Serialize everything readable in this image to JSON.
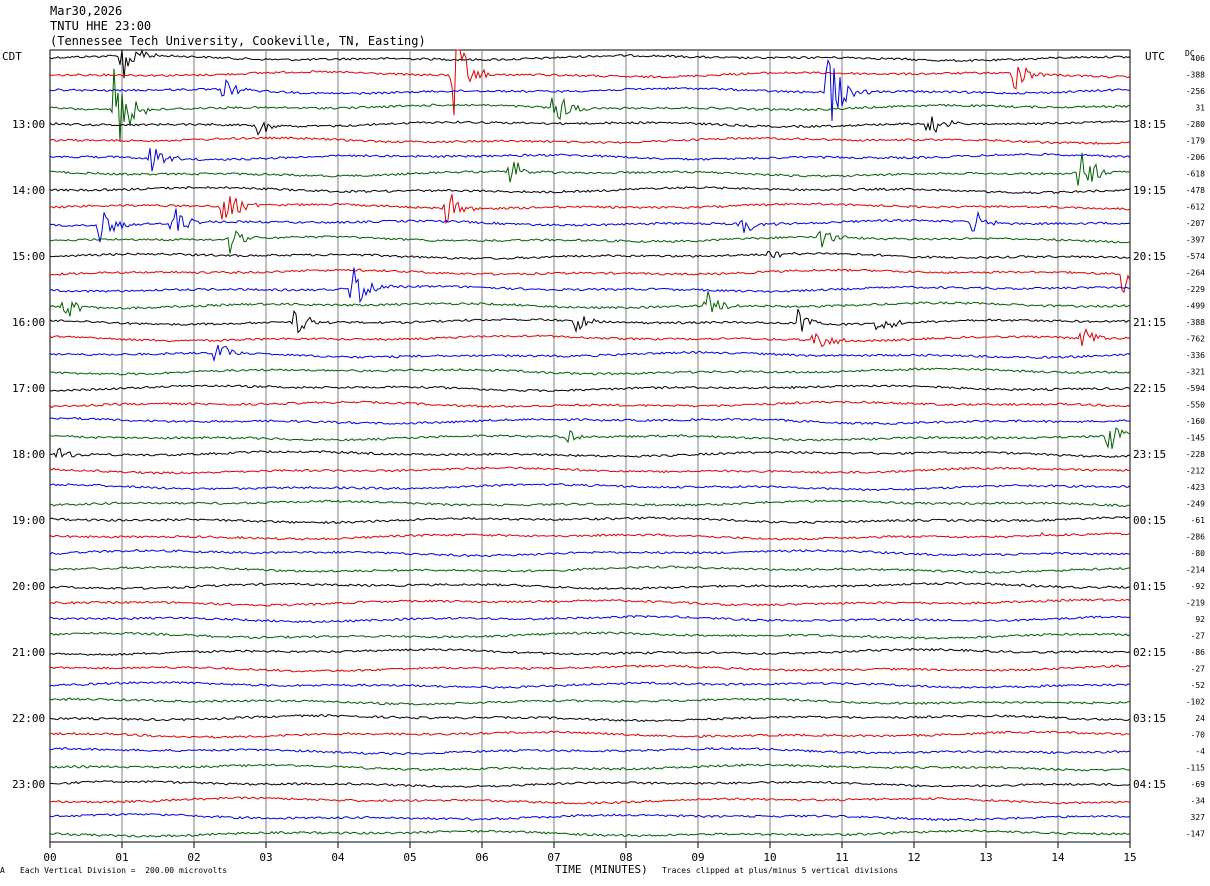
{
  "header": {
    "line1": "Mar30,2026",
    "line2": "TNTU HHE 23:00",
    "line3": "(Tennessee Tech University, Cookeville, TN, Easting)"
  },
  "left_tz": "CDT",
  "right_tz": "UTC",
  "dc_label": "DC",
  "footer": {
    "left": "Each Vertical Division =  200.00 microvolts",
    "right": "Traces clipped at plus/minus 5 vertical divisions",
    "corner": "A"
  },
  "colors": {
    "trace": [
      "#000000",
      "#e00000",
      "#0000e0",
      "#006000"
    ],
    "grid": "#808080"
  },
  "chart_data": {
    "type": "line",
    "xlabel": "TIME (MINUTES)",
    "x_ticks": [
      "00",
      "01",
      "02",
      "03",
      "04",
      "05",
      "06",
      "07",
      "08",
      "09",
      "10",
      "11",
      "12",
      "13",
      "14",
      "15"
    ],
    "xlim": [
      0,
      15
    ],
    "left_hour_labels": [
      "13:00",
      "14:00",
      "15:00",
      "16:00",
      "17:00",
      "18:00",
      "19:00",
      "20:00",
      "21:00",
      "22:00",
      "23:00"
    ],
    "right_hour_labels": [
      "18:15",
      "19:15",
      "20:15",
      "21:15",
      "22:15",
      "23:15",
      "00:15",
      "01:15",
      "02:15",
      "03:15",
      "04:15"
    ],
    "trace_offsets": [
      406,
      -388,
      -256,
      31,
      -280,
      -179,
      -206,
      -618,
      -478,
      -612,
      -207,
      -397,
      -574,
      -264,
      -229,
      -499,
      -388,
      -762,
      -336,
      -321,
      -594,
      -550,
      -160,
      -145,
      -228,
      -212,
      -423,
      -249,
      -61,
      -286,
      -80,
      -214,
      -92,
      -219,
      92,
      -27,
      -86,
      -27,
      -52,
      -102,
      24,
      -70,
      -4,
      -115,
      -69,
      -34,
      327,
      -147
    ],
    "events": [
      {
        "trace": 0,
        "minute": 1.0,
        "amp": 40
      },
      {
        "trace": 1,
        "minute": 5.6,
        "amp": 55
      },
      {
        "trace": 2,
        "minute": 10.8,
        "amp": 45
      },
      {
        "trace": 1,
        "minute": 13.4,
        "amp": 20
      },
      {
        "trace": 3,
        "minute": 0.9,
        "amp": 55
      },
      {
        "trace": 3,
        "minute": 7.0,
        "amp": 25
      },
      {
        "trace": 4,
        "minute": 12.2,
        "amp": 20
      },
      {
        "trace": 2,
        "minute": 2.4,
        "amp": 12
      },
      {
        "trace": 4,
        "minute": 2.9,
        "amp": 15
      },
      {
        "trace": 6,
        "minute": 1.4,
        "amp": 18
      },
      {
        "trace": 7,
        "minute": 6.4,
        "amp": 20
      },
      {
        "trace": 7,
        "minute": 14.3,
        "amp": 30
      },
      {
        "trace": 9,
        "minute": 2.4,
        "amp": 25
      },
      {
        "trace": 9,
        "minute": 5.5,
        "amp": 22
      },
      {
        "trace": 10,
        "minute": 0.7,
        "amp": 22
      },
      {
        "trace": 10,
        "minute": 1.7,
        "amp": 22
      },
      {
        "trace": 10,
        "minute": 9.6,
        "amp": 15
      },
      {
        "trace": 10,
        "minute": 12.8,
        "amp": 15
      },
      {
        "trace": 11,
        "minute": 2.5,
        "amp": 15
      },
      {
        "trace": 11,
        "minute": 10.7,
        "amp": 12
      },
      {
        "trace": 12,
        "minute": 10.0,
        "amp": 10
      },
      {
        "trace": 13,
        "minute": 14.9,
        "amp": 25
      },
      {
        "trace": 14,
        "minute": 4.2,
        "amp": 25
      },
      {
        "trace": 15,
        "minute": 0.2,
        "amp": 18
      },
      {
        "trace": 15,
        "minute": 9.1,
        "amp": 20
      },
      {
        "trace": 16,
        "minute": 3.4,
        "amp": 18
      },
      {
        "trace": 16,
        "minute": 10.4,
        "amp": 18
      },
      {
        "trace": 16,
        "minute": 7.3,
        "amp": 12
      },
      {
        "trace": 16,
        "minute": 11.5,
        "amp": 12
      },
      {
        "trace": 17,
        "minute": 10.6,
        "amp": 18
      },
      {
        "trace": 17,
        "minute": 14.3,
        "amp": 20
      },
      {
        "trace": 18,
        "minute": 2.3,
        "amp": 15
      },
      {
        "trace": 23,
        "minute": 14.7,
        "amp": 18
      },
      {
        "trace": 23,
        "minute": 7.2,
        "amp": 8
      },
      {
        "trace": 24,
        "minute": 0.1,
        "amp": 10
      },
      {
        "trace": 29,
        "minute": 13.8,
        "amp": 5
      }
    ]
  }
}
